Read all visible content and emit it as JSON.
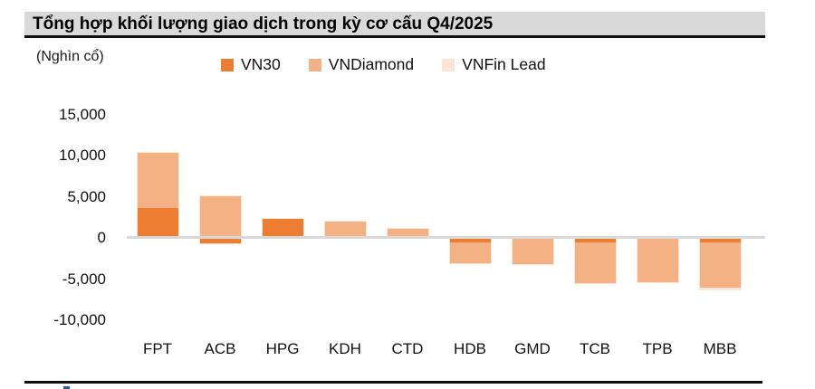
{
  "header": {
    "title": "Tổng hợp khối lượng giao dịch trong kỳ cơ cấu Q4/2025"
  },
  "unit_label": "(Nghìn cổ)",
  "legend": [
    {
      "label": "VN30",
      "color": "#ED7D31"
    },
    {
      "label": "VNDiamond",
      "color": "#F4B183"
    },
    {
      "label": "VNFin Lead",
      "color": "#FBE5D6"
    }
  ],
  "colors": {
    "title_bar_bg": "#D9D9D9",
    "rule_black": "#111111",
    "zero_line": "#D9D9D9",
    "text": "#111111"
  },
  "chart_data": {
    "type": "bar",
    "stacked": true,
    "title": "Tổng hợp khối lượng giao dịch trong kỳ cơ cấu Q4/2025",
    "unit": "Nghìn cổ",
    "categories": [
      "FPT",
      "ACB",
      "HPG",
      "KDH",
      "CTD",
      "HDB",
      "GMD",
      "TCB",
      "TPB",
      "MBB"
    ],
    "series": [
      {
        "name": "VN30",
        "color": "#ED7D31",
        "values": [
          3600,
          -800,
          2400,
          0,
          0,
          -500,
          0,
          -500,
          0,
          -500
        ]
      },
      {
        "name": "VNDiamond",
        "color": "#F4B183",
        "values": [
          6800,
          5200,
          0,
          2100,
          1200,
          -2700,
          -3300,
          -5100,
          -5500,
          -5500
        ]
      },
      {
        "name": "VNFin Lead",
        "color": "#FBE5D6",
        "values": [
          0,
          0,
          0,
          0,
          0,
          0,
          0,
          0,
          0,
          -400
        ]
      }
    ],
    "ylim": [
      -10000,
      15000
    ],
    "yticks": [
      15000,
      10000,
      5000,
      0,
      -5000,
      -10000
    ],
    "ytick_labels": [
      "15,000",
      "10,000",
      "5,000",
      "0",
      "-5,000",
      "-10,000"
    ],
    "xlabel": "",
    "ylabel": "(Nghìn cổ)",
    "grid": false,
    "legend_position": "top"
  }
}
